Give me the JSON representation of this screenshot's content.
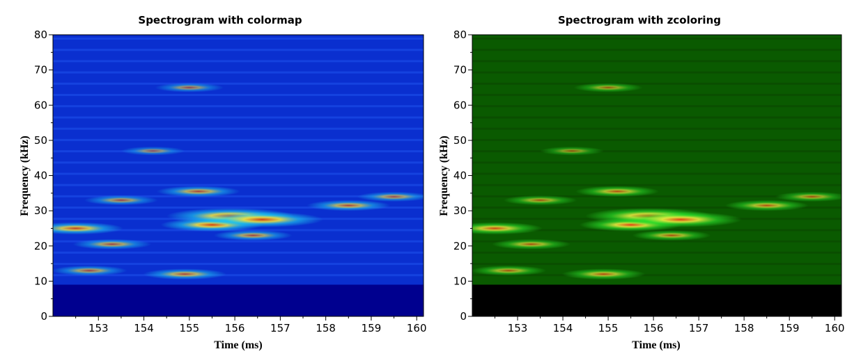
{
  "chart_data": [
    {
      "type": "heatmap",
      "title": "Spectrogram with colormap",
      "xlabel": "Time (ms)",
      "ylabel": "Frequency (kHz)",
      "xlim": [
        152.0,
        160.15
      ],
      "ylim": [
        0,
        80
      ],
      "xticks": [
        153,
        154,
        155,
        156,
        157,
        158,
        159,
        160
      ],
      "yticks": [
        0,
        10,
        20,
        30,
        40,
        50,
        60,
        70,
        80
      ],
      "colormap": "jet",
      "colors": {
        "floor": "#00008f",
        "low": "#0a2fcf",
        "mid": "#1fd0f0",
        "high": "#f0e040",
        "peak": "#d04010"
      },
      "noise_floor_below_khz": 9,
      "hotspots": [
        {
          "t": 152.5,
          "f": 25,
          "level": 0.62
        },
        {
          "t": 153.3,
          "f": 20.5,
          "level": 0.45
        },
        {
          "t": 152.8,
          "f": 13,
          "level": 0.42
        },
        {
          "t": 154.9,
          "f": 12,
          "level": 0.5
        },
        {
          "t": 155.5,
          "f": 26,
          "level": 0.7
        },
        {
          "t": 155.9,
          "f": 28.5,
          "level": 0.95
        },
        {
          "t": 156.6,
          "f": 27.5,
          "level": 0.9
        },
        {
          "t": 155.2,
          "f": 35.5,
          "level": 0.5
        },
        {
          "t": 156.4,
          "f": 23,
          "level": 0.45
        },
        {
          "t": 158.5,
          "f": 31.5,
          "level": 0.5
        },
        {
          "t": 159.5,
          "f": 34,
          "level": 0.4
        },
        {
          "t": 155.0,
          "f": 65,
          "level": 0.35
        },
        {
          "t": 154.2,
          "f": 47,
          "level": 0.3
        },
        {
          "t": 153.5,
          "f": 33,
          "level": 0.4
        }
      ]
    },
    {
      "type": "heatmap",
      "title": "Spectrogram with zcoloring",
      "xlabel": "Time (ms)",
      "ylabel": "Frequency (kHz)",
      "xlim": [
        152.0,
        160.15
      ],
      "ylim": [
        0,
        80
      ],
      "xticks": [
        153,
        154,
        155,
        156,
        157,
        158,
        159,
        160
      ],
      "yticks": [
        0,
        10,
        20,
        30,
        40,
        50,
        60,
        70,
        80
      ],
      "colormap": "green-yellow-red",
      "colors": {
        "floor": "#000000",
        "low": "#0a5a00",
        "mid": "#2ee82e",
        "high": "#e8e840",
        "peak": "#e04010"
      },
      "noise_floor_below_khz": 9,
      "hotspots": [
        {
          "t": 152.5,
          "f": 25,
          "level": 0.62
        },
        {
          "t": 153.3,
          "f": 20.5,
          "level": 0.45
        },
        {
          "t": 152.8,
          "f": 13,
          "level": 0.42
        },
        {
          "t": 154.9,
          "f": 12,
          "level": 0.5
        },
        {
          "t": 155.5,
          "f": 26,
          "level": 0.7
        },
        {
          "t": 155.9,
          "f": 28.5,
          "level": 0.95
        },
        {
          "t": 156.6,
          "f": 27.5,
          "level": 0.9
        },
        {
          "t": 155.2,
          "f": 35.5,
          "level": 0.5
        },
        {
          "t": 156.4,
          "f": 23,
          "level": 0.45
        },
        {
          "t": 158.5,
          "f": 31.5,
          "level": 0.5
        },
        {
          "t": 159.5,
          "f": 34,
          "level": 0.4
        },
        {
          "t": 155.0,
          "f": 65,
          "level": 0.35
        },
        {
          "t": 154.2,
          "f": 47,
          "level": 0.3
        },
        {
          "t": 153.5,
          "f": 33,
          "level": 0.4
        }
      ]
    }
  ]
}
